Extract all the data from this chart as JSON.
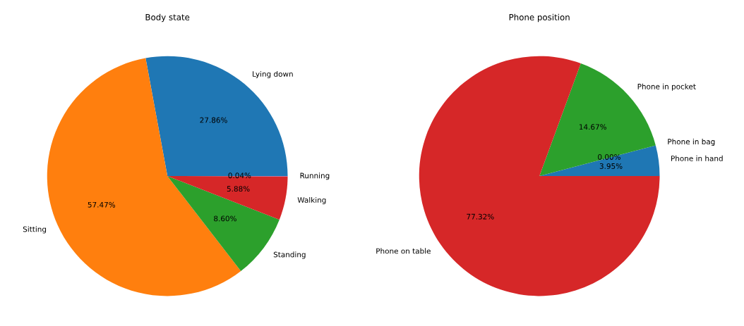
{
  "chart_data": [
    {
      "type": "pie",
      "title": "Body state",
      "categories": [
        "Lying down",
        "Sitting",
        "Standing",
        "Walking",
        "Running"
      ],
      "values": [
        27.86,
        57.47,
        8.6,
        5.88,
        0.04
      ],
      "colors": [
        "#1f77b4",
        "#ff7f0e",
        "#2ca02c",
        "#d62728",
        "#9467bd"
      ],
      "value_labels": [
        "27.86%",
        "57.47%",
        "8.60%",
        "5.88%",
        "0.04%"
      ]
    },
    {
      "type": "pie",
      "title": "Phone position",
      "categories": [
        "Phone in hand",
        "Phone in bag",
        "Phone in pocket",
        "Phone on table"
      ],
      "values": [
        3.95,
        0.0,
        14.67,
        77.32
      ],
      "colors": [
        "#1f77b4",
        "#ff7f0e",
        "#2ca02c",
        "#d62728"
      ],
      "value_labels": [
        "3.95%",
        "0.00%",
        "14.67%",
        "77.32%"
      ]
    }
  ]
}
